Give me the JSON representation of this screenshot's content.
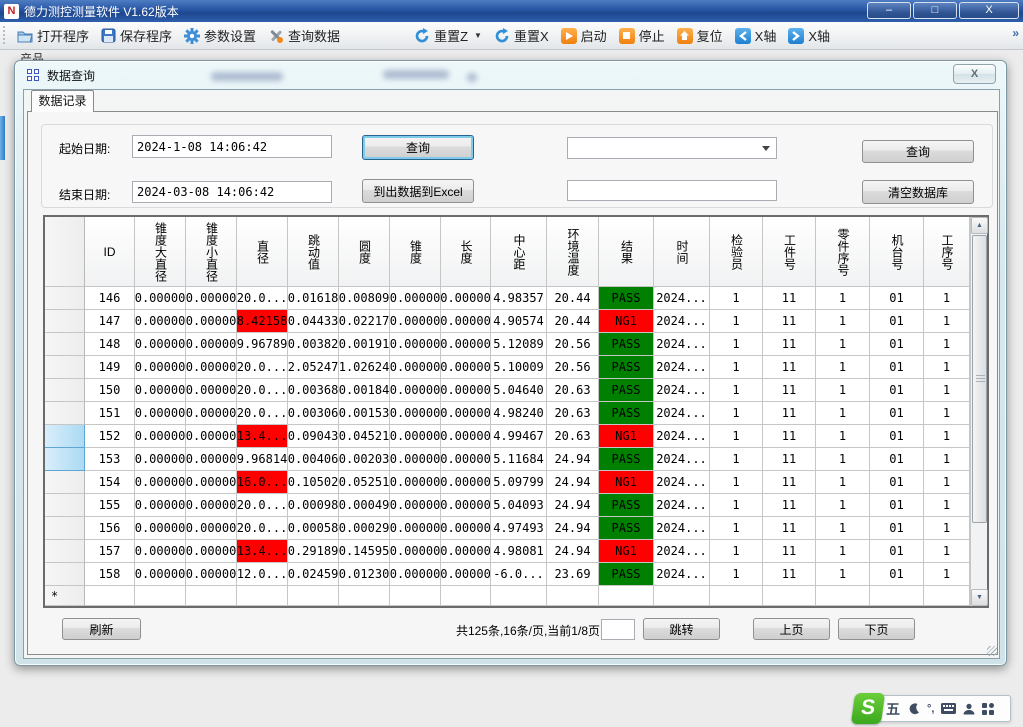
{
  "window": {
    "title": "德力测控测量软件 V1.62版本",
    "minimize_glyph": "–",
    "maximize_glyph": "□",
    "close_glyph": "X"
  },
  "toolbar": {
    "overflow_glyph": "»",
    "items": [
      {
        "label": "打开程序",
        "icon": "open-folder-icon"
      },
      {
        "label": "保存程序",
        "icon": "save-icon"
      },
      {
        "label": "参数设置",
        "icon": "gear-icon"
      },
      {
        "label": "查询数据",
        "icon": "tools-icon"
      },
      {
        "label": "重置Z",
        "icon": "reset-icon",
        "dropdown": true
      },
      {
        "label": "重置X",
        "icon": "reset-icon"
      },
      {
        "label": "启动",
        "icon": "start-icon"
      },
      {
        "label": "停止",
        "icon": "stop-icon"
      },
      {
        "label": "复位",
        "icon": "home-icon"
      },
      {
        "label": "X轴",
        "icon": "axis-left-icon"
      },
      {
        "label": "X轴",
        "icon": "axis-right-icon"
      }
    ]
  },
  "background": {
    "product_label": "产品"
  },
  "dialog": {
    "title": "数据查询",
    "close_glyph": "X",
    "tab": "数据记录",
    "form": {
      "start_date_label": "起始日期:",
      "start_date_value": "2024-1-08 14:06:42",
      "end_date_label": "结束日期:",
      "end_date_value": "2024-03-08 14:06:42",
      "query_button": "查询",
      "export_button": "到出数据到Excel",
      "query_button2": "查询",
      "clear_button": "清空数据库",
      "combo_value": "",
      "filter_value": ""
    },
    "table": {
      "columns": [
        "ID",
        "锥度大直径",
        "锥度小直径",
        "直径",
        "跳动值",
        "圆度",
        "锥度",
        "长度",
        "中心距",
        "环境温度",
        "结果",
        "时间",
        "检验员",
        "工件号",
        "零件序号",
        "机台号",
        "工序号"
      ],
      "result_col": 10,
      "pass_color": "#008000",
      "fail_color": "#ff0000",
      "new_row_marker": "*",
      "rows": [
        {
          "cells": [
            "146",
            "0.00000",
            "0.00000",
            "20.0...",
            "0.01618",
            "0.00809",
            "0.00000",
            "0.00000",
            "4.98357",
            "20.44",
            "PASS",
            "2024...",
            "1",
            "11",
            "1",
            "01",
            "1"
          ],
          "red": [],
          "selected": false
        },
        {
          "cells": [
            "147",
            "0.00000",
            "0.00000",
            "8.42158",
            "0.04433",
            "0.02217",
            "0.00000",
            "0.00000",
            "4.90574",
            "20.44",
            "NG1",
            "2024...",
            "1",
            "11",
            "1",
            "01",
            "1"
          ],
          "red": [
            3
          ],
          "selected": false
        },
        {
          "cells": [
            "148",
            "0.00000",
            "0.00000",
            "9.96789",
            "0.00382",
            "0.00191",
            "0.00000",
            "0.00000",
            "5.12089",
            "20.56",
            "PASS",
            "2024...",
            "1",
            "11",
            "1",
            "01",
            "1"
          ],
          "red": [],
          "selected": false
        },
        {
          "cells": [
            "149",
            "0.00000",
            "0.00000",
            "20.0...",
            "2.05247",
            "1.02624",
            "0.00000",
            "0.00000",
            "5.10009",
            "20.56",
            "PASS",
            "2024...",
            "1",
            "11",
            "1",
            "01",
            "1"
          ],
          "red": [],
          "selected": false
        },
        {
          "cells": [
            "150",
            "0.00000",
            "0.00000",
            "20.0...",
            "0.00368",
            "0.00184",
            "0.00000",
            "0.00000",
            "5.04640",
            "20.63",
            "PASS",
            "2024...",
            "1",
            "11",
            "1",
            "01",
            "1"
          ],
          "red": [],
          "selected": false
        },
        {
          "cells": [
            "151",
            "0.00000",
            "0.00000",
            "20.0...",
            "0.00306",
            "0.00153",
            "0.00000",
            "0.00000",
            "4.98240",
            "20.63",
            "PASS",
            "2024...",
            "1",
            "11",
            "1",
            "01",
            "1"
          ],
          "red": [],
          "selected": false
        },
        {
          "cells": [
            "152",
            "0.00000",
            "0.00000",
            "13.4...",
            "0.09043",
            "0.04521",
            "0.00000",
            "0.00000",
            "4.99467",
            "20.63",
            "NG1",
            "2024...",
            "1",
            "11",
            "1",
            "01",
            "1"
          ],
          "red": [
            3
          ],
          "selected": true
        },
        {
          "cells": [
            "153",
            "0.00000",
            "0.00000",
            "9.96814",
            "0.00406",
            "0.00203",
            "0.00000",
            "0.00000",
            "5.11684",
            "24.94",
            "PASS",
            "2024...",
            "1",
            "11",
            "1",
            "01",
            "1"
          ],
          "red": [],
          "selected": true
        },
        {
          "cells": [
            "154",
            "0.00000",
            "0.00000",
            "16.0...",
            "0.10502",
            "0.05251",
            "0.00000",
            "0.00000",
            "5.09799",
            "24.94",
            "NG1",
            "2024...",
            "1",
            "11",
            "1",
            "01",
            "1"
          ],
          "red": [
            3
          ],
          "selected": false
        },
        {
          "cells": [
            "155",
            "0.00000",
            "0.00000",
            "20.0...",
            "0.00098",
            "0.00049",
            "0.00000",
            "0.00000",
            "5.04093",
            "24.94",
            "PASS",
            "2024...",
            "1",
            "11",
            "1",
            "01",
            "1"
          ],
          "red": [],
          "selected": false
        },
        {
          "cells": [
            "156",
            "0.00000",
            "0.00000",
            "20.0...",
            "0.00058",
            "0.00029",
            "0.00000",
            "0.00000",
            "4.97493",
            "24.94",
            "PASS",
            "2024...",
            "1",
            "11",
            "1",
            "01",
            "1"
          ],
          "red": [],
          "selected": false
        },
        {
          "cells": [
            "157",
            "0.00000",
            "0.00000",
            "13.4...",
            "0.29189",
            "0.14595",
            "0.00000",
            "0.00000",
            "4.98081",
            "24.94",
            "NG1",
            "2024...",
            "1",
            "11",
            "1",
            "01",
            "1"
          ],
          "red": [
            3
          ],
          "selected": false
        },
        {
          "cells": [
            "158",
            "0.00000",
            "0.00000",
            "12.0...",
            "0.02459",
            "0.01230",
            "0.00000",
            "0.00000",
            "-6.0...",
            "23.69",
            "PASS",
            "2024...",
            "1",
            "11",
            "1",
            "01",
            "1"
          ],
          "red": [],
          "selected": false
        }
      ]
    },
    "footer": {
      "refresh_button": "刷新",
      "page_info": "共125条,16条/页,当前1/8页",
      "page_input": "",
      "jump_button": "跳转",
      "prev_button": "上页",
      "next_button": "下页"
    }
  },
  "ime": {
    "logo": "S",
    "wubi": "五",
    "punct": "°,"
  }
}
